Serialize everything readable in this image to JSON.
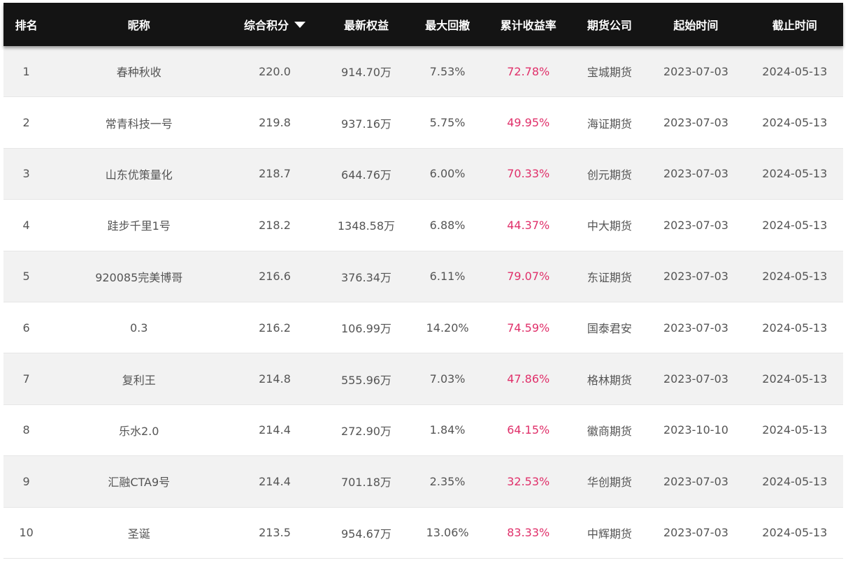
{
  "headers": {
    "rank": "排名",
    "name": "昵称",
    "score": "综合积分",
    "equity": "最新权益",
    "drawdown": "最大回撤",
    "return": "累计收益率",
    "company": "期货公司",
    "start": "起始时间",
    "end": "截止时间"
  },
  "sort_icon": "triangle-down-icon",
  "colors": {
    "header_bg": "#141414",
    "return_text": "#e0306a",
    "row_alt_bg": "#f2f2f2"
  },
  "rows": [
    {
      "rank": "1",
      "name": "春种秋收",
      "score": "220.0",
      "equity": "914.70万",
      "drawdown": "7.53%",
      "return": "72.78%",
      "company": "宝城期货",
      "start": "2023-07-03",
      "end": "2024-05-13"
    },
    {
      "rank": "2",
      "name": "常青科技一号",
      "score": "219.8",
      "equity": "937.16万",
      "drawdown": "5.75%",
      "return": "49.95%",
      "company": "海证期货",
      "start": "2023-07-03",
      "end": "2024-05-13"
    },
    {
      "rank": "3",
      "name": "山东优策量化",
      "score": "218.7",
      "equity": "644.76万",
      "drawdown": "6.00%",
      "return": "70.33%",
      "company": "创元期货",
      "start": "2023-07-03",
      "end": "2024-05-13"
    },
    {
      "rank": "4",
      "name": "跬步千里1号",
      "score": "218.2",
      "equity": "1348.58万",
      "drawdown": "6.88%",
      "return": "44.37%",
      "company": "中大期货",
      "start": "2023-07-03",
      "end": "2024-05-13"
    },
    {
      "rank": "5",
      "name": "920085完美博哥",
      "score": "216.6",
      "equity": "376.34万",
      "drawdown": "6.11%",
      "return": "79.07%",
      "company": "东证期货",
      "start": "2023-07-03",
      "end": "2024-05-13"
    },
    {
      "rank": "6",
      "name": "0.3",
      "score": "216.2",
      "equity": "106.99万",
      "drawdown": "14.20%",
      "return": "74.59%",
      "company": "国泰君安",
      "start": "2023-07-03",
      "end": "2024-05-13"
    },
    {
      "rank": "7",
      "name": "复利王",
      "score": "214.8",
      "equity": "555.96万",
      "drawdown": "7.03%",
      "return": "47.86%",
      "company": "格林期货",
      "start": "2023-07-03",
      "end": "2024-05-13"
    },
    {
      "rank": "8",
      "name": "乐水2.0",
      "score": "214.4",
      "equity": "272.90万",
      "drawdown": "1.84%",
      "return": "64.15%",
      "company": "徽商期货",
      "start": "2023-10-10",
      "end": "2024-05-13"
    },
    {
      "rank": "9",
      "name": "汇融CTA9号",
      "score": "214.4",
      "equity": "701.18万",
      "drawdown": "2.35%",
      "return": "32.53%",
      "company": "华创期货",
      "start": "2023-07-03",
      "end": "2024-05-13"
    },
    {
      "rank": "10",
      "name": "圣诞",
      "score": "213.5",
      "equity": "954.67万",
      "drawdown": "13.06%",
      "return": "83.33%",
      "company": "中辉期货",
      "start": "2023-07-03",
      "end": "2024-05-13"
    }
  ]
}
